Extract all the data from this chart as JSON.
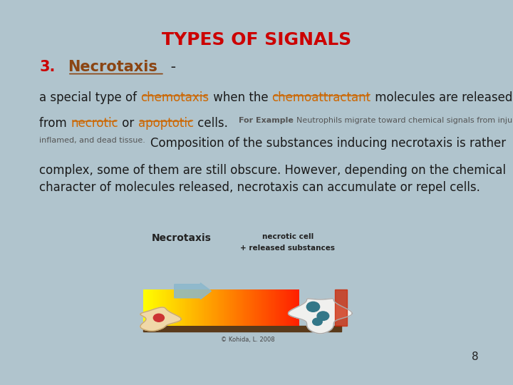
{
  "title": "TYPES OF SIGNALS",
  "title_color": "#CC0000",
  "title_fontsize": 18,
  "background_color": "#b0c4cd",
  "number_label": "3.",
  "number_color": "#CC0000",
  "number_fontsize": 15,
  "heading_text": "Necrotaxis",
  "heading_color": "#8B4513",
  "heading_fontsize": 15,
  "body_para2_color": "#1a1a1a",
  "body_para2_size": 13,
  "page_number": "8"
}
